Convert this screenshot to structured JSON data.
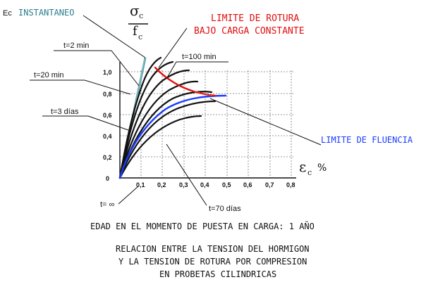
{
  "labels": {
    "ec": "Ec",
    "instantaneo": "INSTANTANEO",
    "sigma": "σ",
    "sigma_sub": "c",
    "f": "f",
    "f_sub": "c",
    "limite_rotura_1": "LIMITE DE ROTURA",
    "limite_rotura_2": "BAJO CARGA CONSTANTE",
    "t2min": "t=2 min",
    "t20min": "t=20 min",
    "t3dias": "t=3 días",
    "t100min": "t=100 min",
    "t70dias": "t=70 días",
    "tinf": "t= ∞",
    "limite_fluencia": "LIMITE DE FLUENCIA",
    "epsilon": "ε",
    "epsilon_sub": "c",
    "percent": "%"
  },
  "axes": {
    "y_ticks": [
      "1,0",
      "0,8",
      "0,6",
      "0,4",
      "0,2",
      "0"
    ],
    "x_ticks": [
      "0,1",
      "0,2",
      "0,3",
      "0,4",
      "0,5",
      "0,6",
      "0,7",
      "0,8"
    ]
  },
  "captions": {
    "edad": "EDAD EN EL MOMENTO DE PUESTA EN CARGA: 1 AÑO",
    "line1": "RELACION ENTRE LA TENSION DEL HORMIGON",
    "line2": "Y LA TENSION DE ROTURA POR COMPRESION",
    "line3": "EN PROBETAS CILINDRICAS"
  },
  "colors": {
    "rotura": "#e01010",
    "fluencia": "#1a3cff",
    "instantaneo": "#5aa0a8",
    "curves": "#111111"
  }
}
